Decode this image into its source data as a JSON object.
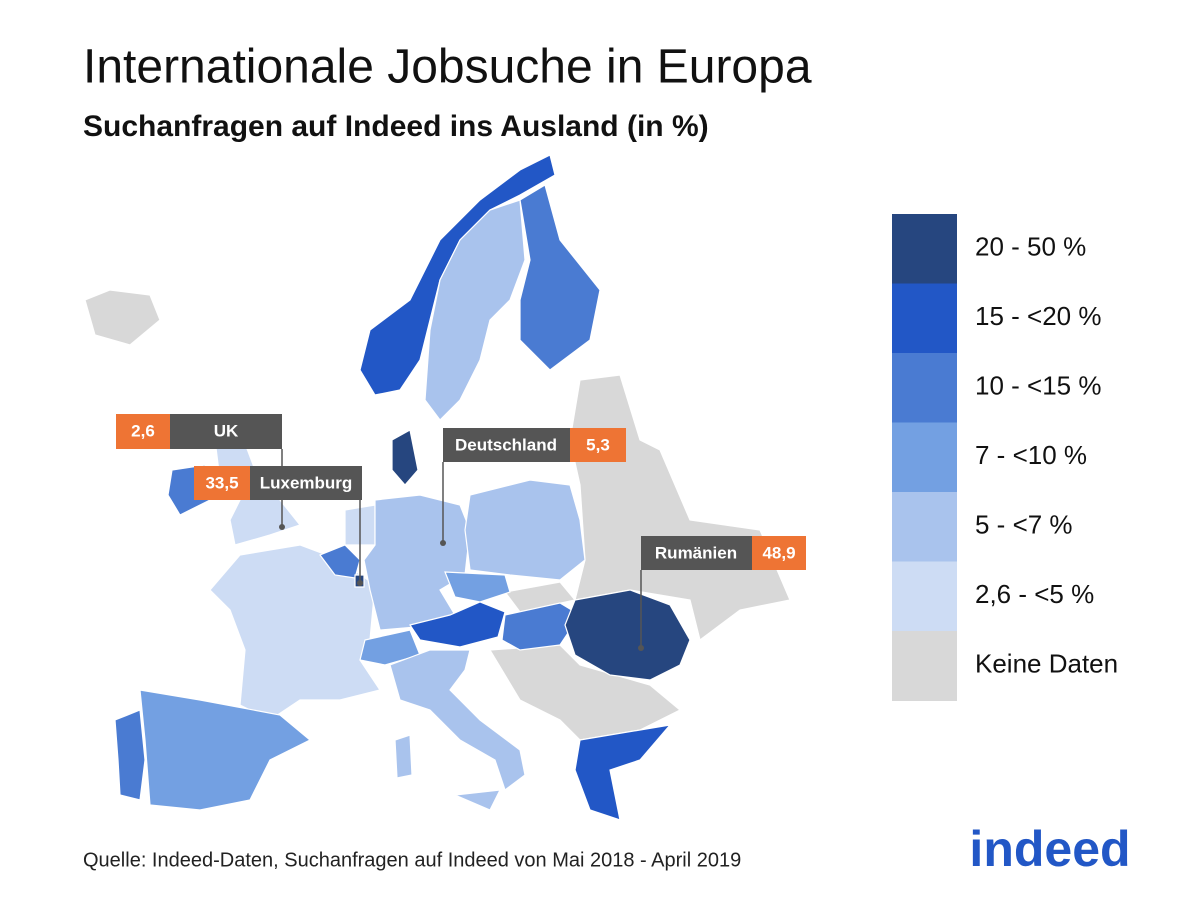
{
  "title": "Internationale Jobsuche in Europa",
  "subtitle": "Suchanfragen auf Indeed ins Ausland (in %)",
  "legend": {
    "items": [
      {
        "label": "20 - 50 %",
        "color": "#26467f"
      },
      {
        "label": "15 - <20 %",
        "color": "#2257c6"
      },
      {
        "label": "10 - <15 %",
        "color": "#4a7bd2"
      },
      {
        "label": "7 - <10 %",
        "color": "#73a0e2"
      },
      {
        "label": "5 - <7 %",
        "color": "#a9c3ed"
      },
      {
        "label": "2,6 - <5 %",
        "color": "#cddcf4"
      },
      {
        "label": "Keine Daten",
        "color": "#d8d8d8"
      }
    ]
  },
  "callouts": [
    {
      "name": "UK",
      "value": "2,6"
    },
    {
      "name": "Luxemburg",
      "value": "33,5"
    },
    {
      "name": "Deutschland",
      "value": "5,3"
    },
    {
      "name": "Rumänien",
      "value": "48,9"
    }
  ],
  "source": "Quelle: Indeed-Daten, Suchanfragen auf Indeed von Mai 2018 - April 2019",
  "logo": "indeed"
}
